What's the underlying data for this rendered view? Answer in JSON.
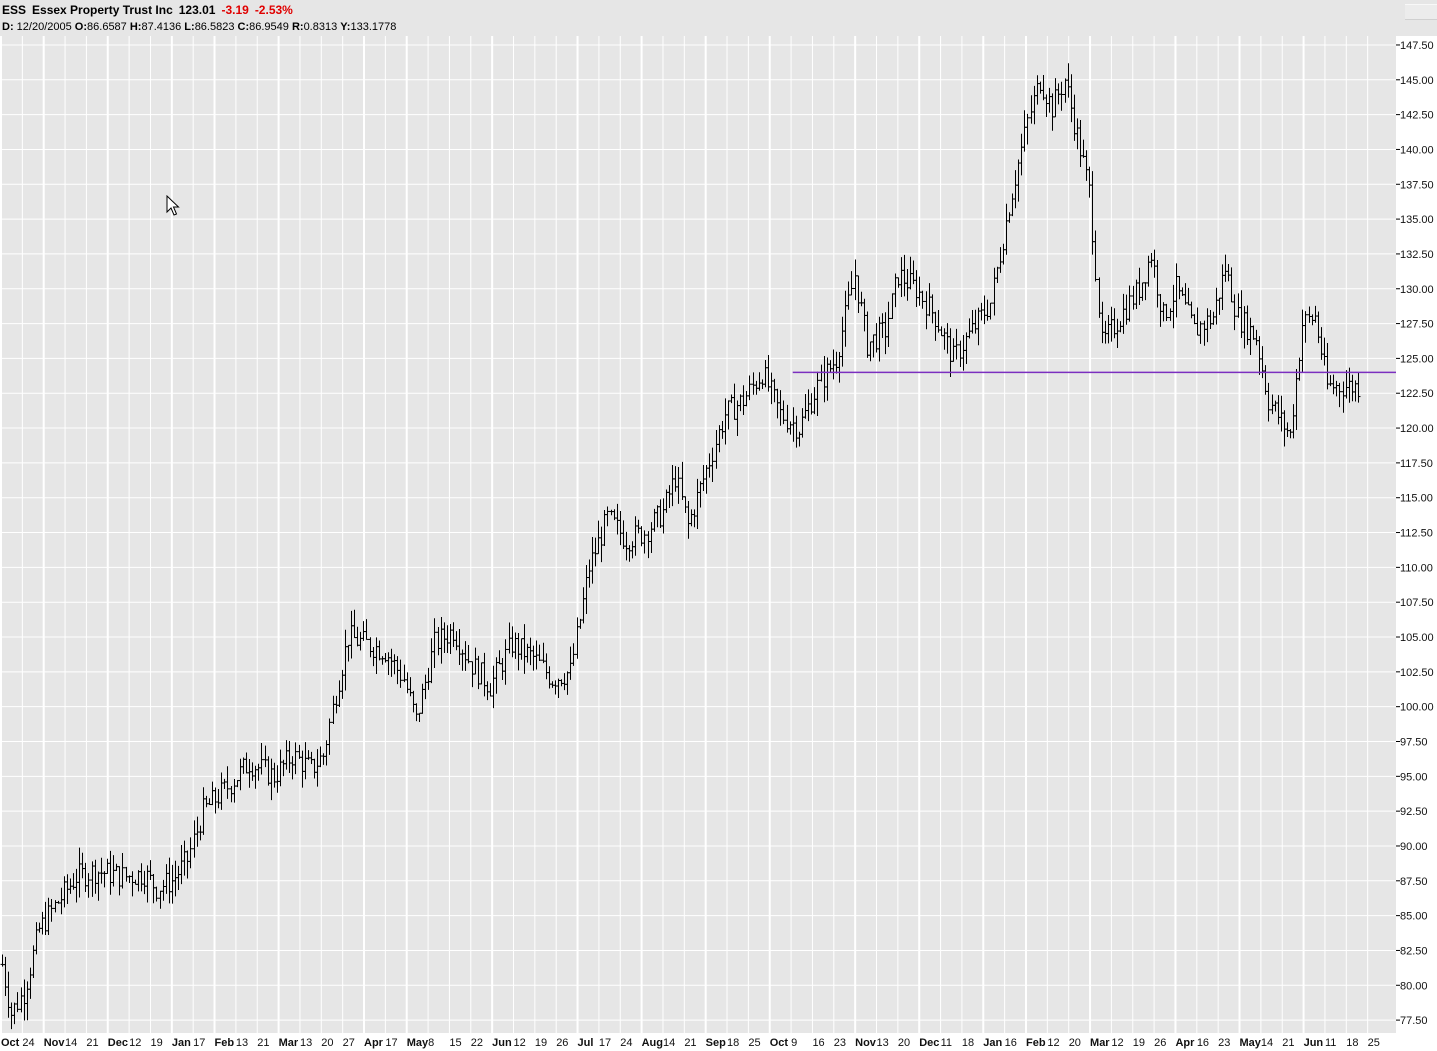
{
  "header": {
    "symbol": "ESS",
    "name": "Essex Property Trust Inc",
    "last": "123.01",
    "change": "-3.19",
    "change_pct": "-2.53%",
    "date_label": "D:",
    "date": "12/20/2005",
    "open_label": "O:",
    "open": "86.6587",
    "high_label": "H:",
    "high": "87.4136",
    "low_label": "L:",
    "low": "86.5823",
    "close_label": "C:",
    "close": "86.9549",
    "r_label": "R:",
    "r": "0.8313",
    "y_label": "Y:",
    "y": "133.1778"
  },
  "colors": {
    "background": "#e6e6e6",
    "grid": "#ffffff",
    "bars": "#000000",
    "support_line": "#7b2fbf",
    "negative_change": "#e00000"
  },
  "icons": {
    "cursor": "mouse-pointer-icon"
  },
  "chart_data": {
    "type": "ohlc",
    "ylim": [
      76.0,
      148.0
    ],
    "y_ticks": [
      "77.50",
      "80.00",
      "82.50",
      "85.00",
      "87.50",
      "90.00",
      "92.50",
      "95.00",
      "97.50",
      "100.00",
      "102.50",
      "105.00",
      "107.50",
      "110.00",
      "112.50",
      "115.00",
      "117.50",
      "120.00",
      "122.50",
      "125.00",
      "127.50",
      "130.00",
      "132.50",
      "135.00",
      "137.50",
      "140.00",
      "142.50",
      "145.00",
      "147.50"
    ],
    "x_ticks": [
      {
        "label": "Oct",
        "bold": true
      },
      {
        "label": "24"
      },
      {
        "label": "Nov",
        "bold": true
      },
      {
        "label": "14"
      },
      {
        "label": "21"
      },
      {
        "label": "Dec",
        "bold": true
      },
      {
        "label": "12"
      },
      {
        "label": "19"
      },
      {
        "label": "Jan",
        "bold": true
      },
      {
        "label": "17"
      },
      {
        "label": "Feb",
        "bold": true
      },
      {
        "label": "13"
      },
      {
        "label": "21"
      },
      {
        "label": "Mar",
        "bold": true
      },
      {
        "label": "13"
      },
      {
        "label": "20"
      },
      {
        "label": "27"
      },
      {
        "label": "Apr",
        "bold": true
      },
      {
        "label": "17"
      },
      {
        "label": "May",
        "bold": true
      },
      {
        "label": "8"
      },
      {
        "label": "15"
      },
      {
        "label": "22"
      },
      {
        "label": "Jun",
        "bold": true
      },
      {
        "label": "12"
      },
      {
        "label": "19"
      },
      {
        "label": "26"
      },
      {
        "label": "Jul",
        "bold": true
      },
      {
        "label": "17"
      },
      {
        "label": "24"
      },
      {
        "label": "Aug",
        "bold": true
      },
      {
        "label": "14"
      },
      {
        "label": "21"
      },
      {
        "label": "Sep",
        "bold": true
      },
      {
        "label": "18"
      },
      {
        "label": "25"
      },
      {
        "label": "Oct",
        "bold": true
      },
      {
        "label": "9"
      },
      {
        "label": "16"
      },
      {
        "label": "23"
      },
      {
        "label": "Nov",
        "bold": true
      },
      {
        "label": "13"
      },
      {
        "label": "20"
      },
      {
        "label": "Dec",
        "bold": true
      },
      {
        "label": "11"
      },
      {
        "label": "18"
      },
      {
        "label": "Jan",
        "bold": true
      },
      {
        "label": "16"
      },
      {
        "label": "Feb",
        "bold": true
      },
      {
        "label": "12"
      },
      {
        "label": "20"
      },
      {
        "label": "Mar",
        "bold": true
      },
      {
        "label": "12"
      },
      {
        "label": "19"
      },
      {
        "label": "26"
      },
      {
        "label": "Apr",
        "bold": true
      },
      {
        "label": "16"
      },
      {
        "label": "23"
      },
      {
        "label": "May",
        "bold": true
      },
      {
        "label": "14"
      },
      {
        "label": "21"
      },
      {
        "label": "Jun",
        "bold": true
      },
      {
        "label": "11"
      },
      {
        "label": "18"
      },
      {
        "label": "25"
      }
    ],
    "bar_count": 440,
    "trend_close": [
      [
        0,
        81.5
      ],
      [
        3,
        78.0
      ],
      [
        7,
        79.5
      ],
      [
        12,
        84.0
      ],
      [
        18,
        86.0
      ],
      [
        24,
        87.8
      ],
      [
        30,
        88.2
      ],
      [
        40,
        87.8
      ],
      [
        46,
        88.0
      ],
      [
        50,
        87.0
      ],
      [
        55,
        87.5
      ],
      [
        60,
        89.0
      ],
      [
        65,
        92.5
      ],
      [
        72,
        94.0
      ],
      [
        80,
        96.0
      ],
      [
        88,
        95.0
      ],
      [
        94,
        96.5
      ],
      [
        100,
        95.5
      ],
      [
        104,
        96.5
      ],
      [
        108,
        101.0
      ],
      [
        112,
        105.0
      ],
      [
        118,
        104.5
      ],
      [
        124,
        104.0
      ],
      [
        130,
        102.0
      ],
      [
        134,
        99.0
      ],
      [
        140,
        104.5
      ],
      [
        146,
        105.5
      ],
      [
        152,
        103.0
      ],
      [
        158,
        101.5
      ],
      [
        165,
        104.5
      ],
      [
        172,
        103.5
      ],
      [
        178,
        102.0
      ],
      [
        184,
        102.5
      ],
      [
        190,
        110.0
      ],
      [
        196,
        113.5
      ],
      [
        202,
        112.0
      ],
      [
        208,
        112.5
      ],
      [
        214,
        114.0
      ],
      [
        218,
        116.5
      ],
      [
        222,
        113.0
      ],
      [
        228,
        117.0
      ],
      [
        234,
        121.0
      ],
      [
        240,
        122.0
      ],
      [
        246,
        124.0
      ],
      [
        252,
        121.0
      ],
      [
        258,
        120.0
      ],
      [
        264,
        123.0
      ],
      [
        270,
        125.0
      ],
      [
        276,
        131.0
      ],
      [
        280,
        126.0
      ],
      [
        286,
        127.0
      ],
      [
        290,
        131.0
      ],
      [
        296,
        130.0
      ],
      [
        302,
        128.0
      ],
      [
        308,
        125.0
      ],
      [
        314,
        127.0
      ],
      [
        320,
        129.0
      ],
      [
        326,
        136.0
      ],
      [
        332,
        142.0
      ],
      [
        336,
        145.0
      ],
      [
        340,
        143.0
      ],
      [
        344,
        145.0
      ],
      [
        348,
        141.0
      ],
      [
        352,
        137.0
      ],
      [
        356,
        126.0
      ],
      [
        362,
        128.0
      ],
      [
        368,
        130.0
      ],
      [
        372,
        132.5
      ],
      [
        376,
        128.0
      ],
      [
        380,
        130.0
      ],
      [
        386,
        127.0
      ],
      [
        392,
        128.0
      ],
      [
        396,
        131.5
      ],
      [
        400,
        128.0
      ],
      [
        406,
        126.5
      ],
      [
        410,
        122.0
      ],
      [
        414,
        120.5
      ],
      [
        417,
        119.5
      ],
      [
        421,
        127.5
      ],
      [
        425,
        128.0
      ],
      [
        429,
        123.0
      ]
    ],
    "volatility": 0.9,
    "support_line": {
      "value": 124.0,
      "from_index": 256,
      "to_index": 439
    }
  }
}
